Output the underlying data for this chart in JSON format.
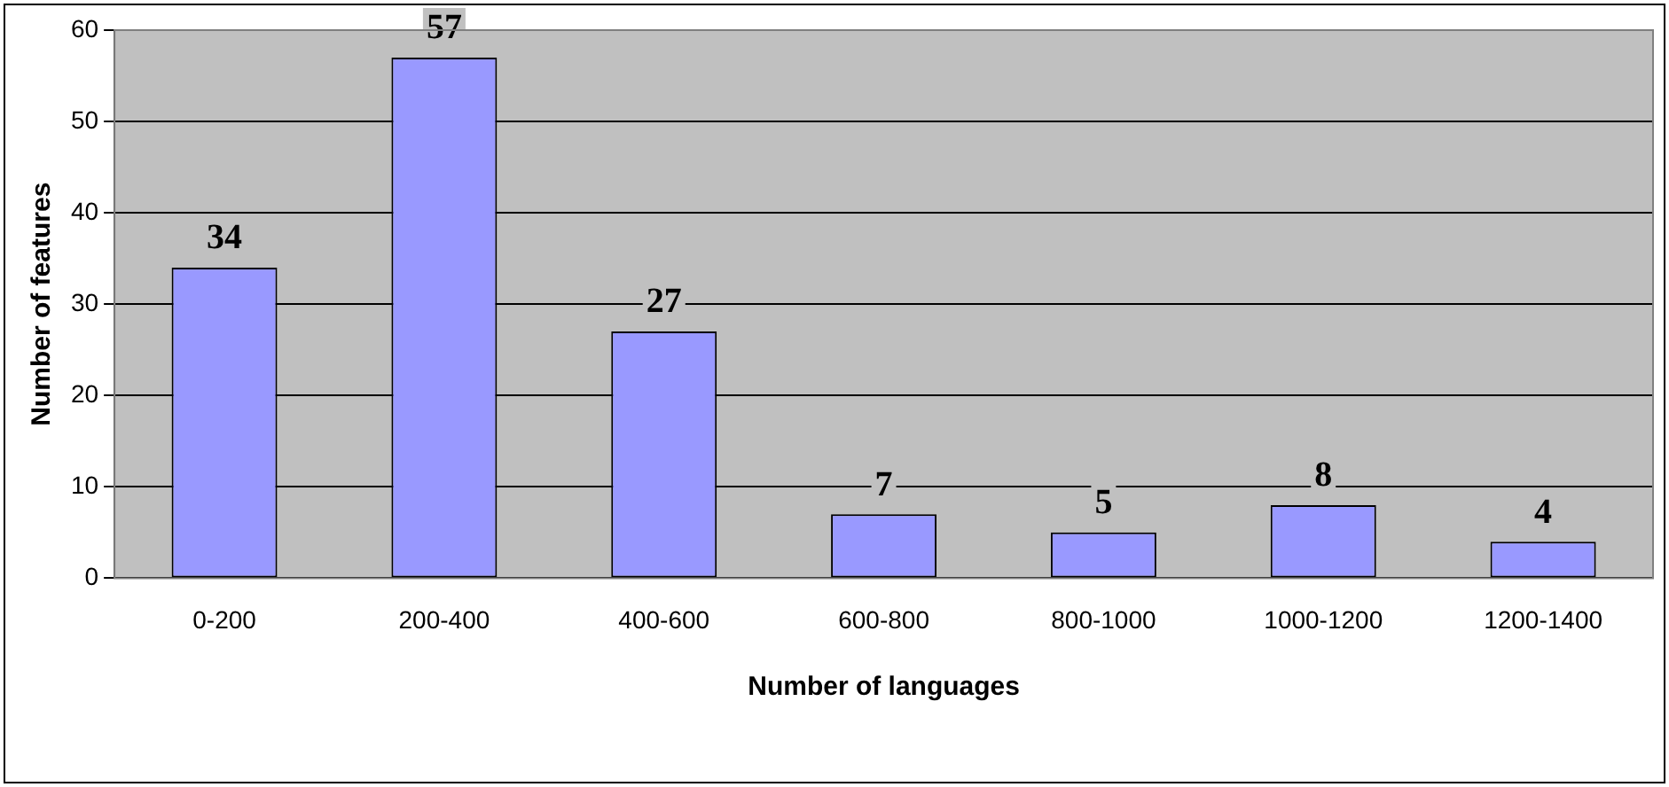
{
  "chart_data": {
    "type": "bar",
    "xlabel": "Number of languages",
    "ylabel": "Number of features",
    "categories": [
      "0-200",
      "200-400",
      "400-600",
      "600-800",
      "800-1000",
      "1000-1200",
      "1200-1400"
    ],
    "values": [
      34,
      57,
      27,
      7,
      5,
      8,
      4
    ],
    "color": "#9999ff",
    "ylim": [
      0,
      60
    ],
    "yticks": [
      0,
      10,
      20,
      30,
      40,
      50,
      60
    ],
    "grid": "y",
    "data_labels": true,
    "legend": false
  }
}
